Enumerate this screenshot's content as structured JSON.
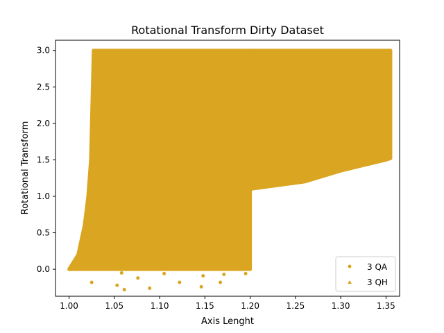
{
  "chart_data": {
    "type": "scatter",
    "title": "Rotational Transform Dirty Dataset",
    "xlabel": "Axis Lenght",
    "ylabel": "Rotational Transform",
    "xlim": [
      0.985,
      1.365
    ],
    "ylim": [
      -0.37,
      3.14
    ],
    "xticks": [
      1.0,
      1.05,
      1.1,
      1.15,
      1.2,
      1.25,
      1.3,
      1.35
    ],
    "xtick_labels": [
      "1.00",
      "1.05",
      "1.10",
      "1.15",
      "1.20",
      "1.25",
      "1.30",
      "1.35"
    ],
    "yticks": [
      0.0,
      0.5,
      1.0,
      1.5,
      2.0,
      2.5,
      3.0
    ],
    "ytick_labels": [
      "0.0",
      "0.5",
      "1.0",
      "1.5",
      "2.0",
      "2.5",
      "3.0"
    ],
    "grid": false,
    "legend_position": "lower-right",
    "color": "#DAA520",
    "series": [
      {
        "name": "3 QA",
        "marker": "circle",
        "region": {
          "x_range": [
            1.0,
            1.2
          ],
          "y_max": 3.0,
          "left_boundary": [
            [
              1.0,
              0.0
            ],
            [
              1.01,
              0.2
            ],
            [
              1.017,
              0.6
            ],
            [
              1.021,
              1.0
            ],
            [
              1.024,
              1.5
            ],
            [
              1.026,
              2.5
            ],
            [
              1.027,
              3.0
            ]
          ]
        },
        "outliers": [
          [
            1.025,
            -0.18
          ],
          [
            1.053,
            -0.22
          ],
          [
            1.061,
            -0.28
          ],
          [
            1.076,
            -0.12
          ],
          [
            1.089,
            -0.26
          ],
          [
            1.122,
            -0.18
          ],
          [
            1.146,
            -0.24
          ],
          [
            1.167,
            -0.18
          ],
          [
            1.148,
            -0.09
          ],
          [
            1.171,
            -0.07
          ],
          [
            1.195,
            -0.06
          ],
          [
            1.058,
            -0.05
          ],
          [
            1.105,
            -0.06
          ]
        ]
      },
      {
        "name": "3 QH",
        "marker": "triangle",
        "region": {
          "x_range": [
            1.2,
            1.355
          ],
          "y_max": 3.0,
          "lower_boundary": [
            [
              1.2,
              1.1
            ],
            [
              1.26,
              1.2
            ],
            [
              1.3,
              1.35
            ],
            [
              1.35,
              1.5
            ],
            [
              1.355,
              1.52
            ]
          ]
        }
      }
    ]
  }
}
